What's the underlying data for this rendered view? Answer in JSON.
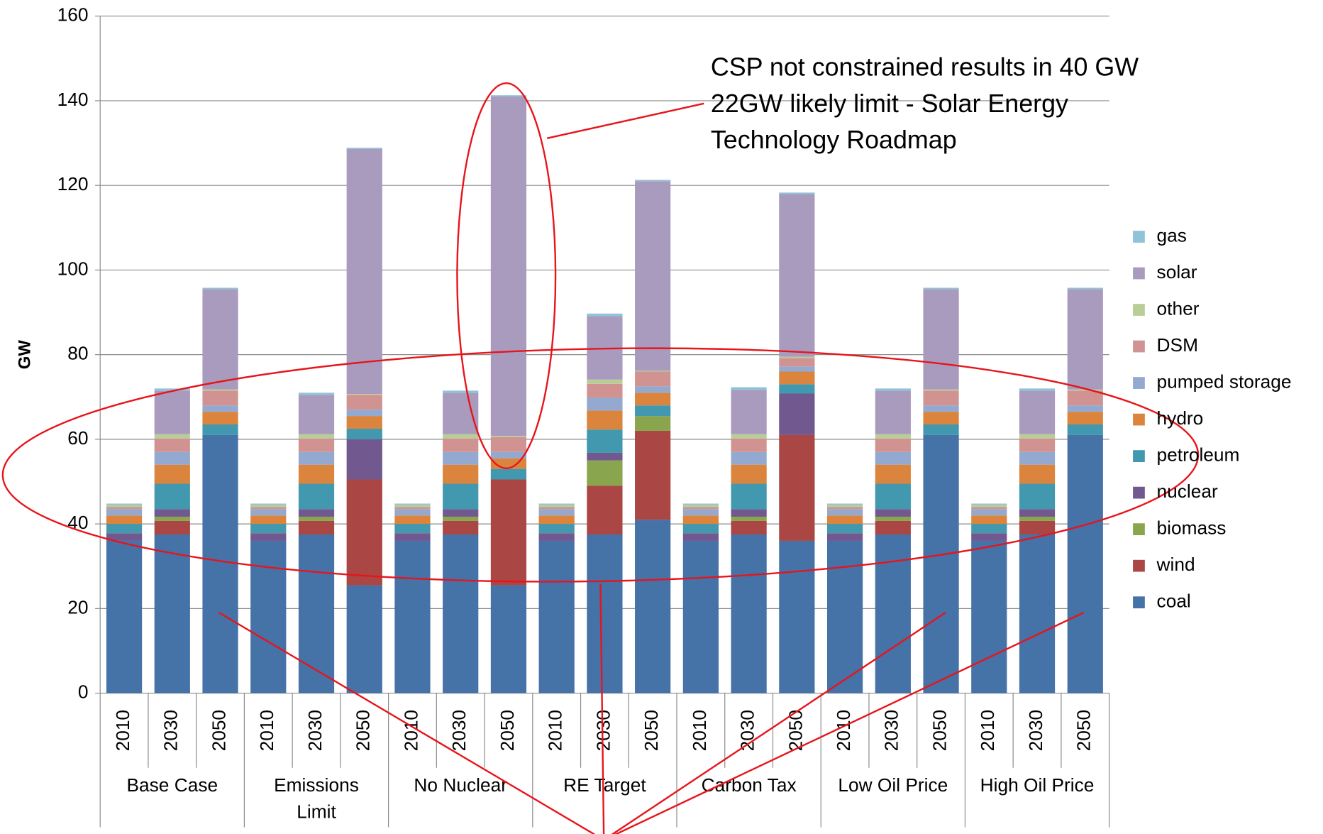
{
  "chart_data": {
    "type": "stacked_bar",
    "y_label": "GW",
    "annotation": "CSP not constrained results in 40 GW\n22GW  likely limit - Solar Energy\nTechnology Roadmap",
    "categories": [
      "2010",
      "2030",
      "2050",
      "2010",
      "2030",
      "2050",
      "2010",
      "2030",
      "2050",
      "2010",
      "2030",
      "2050",
      "2010",
      "2030",
      "2050",
      "2010",
      "2030",
      "2050",
      "2010",
      "2030",
      "2050"
    ],
    "groups": [
      "Base Case",
      "Emissions\nLimit",
      "No Nuclear",
      "RE Target",
      "Carbon Tax",
      "Low Oil Price",
      "High Oil Price"
    ],
    "ylim": [
      0,
      160
    ],
    "yticks": [
      0,
      20,
      40,
      60,
      80,
      100,
      120,
      140,
      160
    ],
    "grid": true,
    "series": [
      {
        "name": "coal",
        "color": "#4572a7",
        "values": [
          36,
          37.5,
          61,
          36,
          37.5,
          25.5,
          36,
          37.5,
          25.5,
          36,
          37.5,
          41,
          36,
          37.5,
          36,
          36,
          37.5,
          61,
          36,
          37.5,
          61
        ]
      },
      {
        "name": "wind",
        "color": "#aa4643",
        "values": [
          0,
          3.2,
          0,
          0,
          3.2,
          25,
          0,
          3.2,
          25,
          0,
          11.5,
          21,
          0,
          3.2,
          25,
          0,
          3.2,
          0,
          0,
          3.2,
          0
        ]
      },
      {
        "name": "biomass",
        "color": "#89a54e",
        "values": [
          0,
          1,
          0,
          0,
          1,
          0,
          0,
          1,
          0,
          0,
          6,
          3.5,
          0,
          1,
          0,
          0,
          1,
          0,
          0,
          1,
          0
        ]
      },
      {
        "name": "nuclear",
        "color": "#71588f",
        "values": [
          1.8,
          1.8,
          0,
          1.8,
          1.8,
          9.5,
          1.8,
          1.8,
          0,
          1.8,
          1.8,
          0,
          1.8,
          1.8,
          9.8,
          1.8,
          1.8,
          0,
          1.8,
          1.8,
          0
        ]
      },
      {
        "name": "petroleum",
        "color": "#4198af",
        "values": [
          2.2,
          6,
          2.5,
          2.2,
          6,
          2.5,
          2.2,
          6,
          2.5,
          2.2,
          5.5,
          2.5,
          2.2,
          6,
          2.2,
          2.2,
          6,
          2.5,
          2.2,
          6,
          2.5
        ]
      },
      {
        "name": "hydro",
        "color": "#db843d",
        "values": [
          2,
          4.5,
          3,
          2,
          4.5,
          3,
          2,
          4.5,
          2.5,
          2,
          4.5,
          3,
          2,
          4.5,
          3,
          2,
          4.5,
          3,
          2,
          4.5,
          3
        ]
      },
      {
        "name": "pumped storage",
        "color": "#93a9cf",
        "values": [
          1.5,
          3,
          1.5,
          1.5,
          3,
          1.5,
          1.5,
          3,
          1.5,
          1.5,
          3,
          1.5,
          1.5,
          3,
          1.2,
          1.5,
          3,
          1.5,
          1.5,
          3,
          1.5
        ]
      },
      {
        "name": "DSM",
        "color": "#d19392",
        "values": [
          0.5,
          3.2,
          3.5,
          0.5,
          3.2,
          3.5,
          0.5,
          3.2,
          3.5,
          0.5,
          3.3,
          3.5,
          0.5,
          3.2,
          2,
          0.5,
          3.2,
          3.5,
          0.5,
          3.2,
          3.5
        ]
      },
      {
        "name": "other",
        "color": "#b9cd96",
        "values": [
          0.5,
          1,
          0.3,
          0.5,
          1,
          0.2,
          0.5,
          1,
          0.3,
          0.5,
          1,
          0.2,
          0.5,
          1,
          0.3,
          0.5,
          1,
          0.3,
          0.5,
          1,
          0.3
        ]
      },
      {
        "name": "solar",
        "color": "#a99bbd",
        "values": [
          0,
          10.3,
          23.7,
          0,
          9.3,
          57.9,
          0,
          9.8,
          80.2,
          0,
          15,
          44.8,
          0,
          10.5,
          38.5,
          0,
          10.3,
          23.7,
          0,
          10.3,
          23.7
        ]
      },
      {
        "name": "gas",
        "color": "#8fc3d7",
        "values": [
          0.3,
          0.5,
          0.3,
          0.3,
          0.5,
          0.3,
          0.3,
          0.5,
          0.3,
          0.3,
          0.6,
          0.3,
          0.3,
          0.6,
          0.3,
          0.3,
          0.5,
          0.3,
          0.3,
          0.5,
          0.3
        ]
      }
    ]
  }
}
